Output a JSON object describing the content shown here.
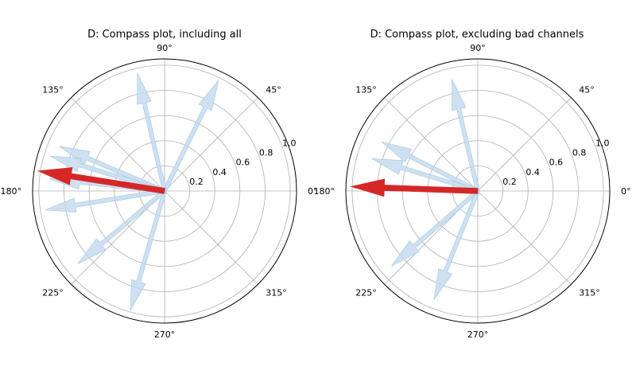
{
  "colors": {
    "channel": "#c6dbef",
    "channel_edge": "#9ecae1",
    "mean": "#d62728",
    "grid": "#b0b0b0"
  },
  "chart_data": [
    {
      "type": "polar-compass",
      "title": "D: Compass plot, including all",
      "theta_tick_labels": [
        "0°",
        "45°",
        "90°",
        "135°",
        "180°",
        "225°",
        "270°",
        "315°"
      ],
      "r_tick_labels": [
        "0.2",
        "0.4",
        "0.6",
        "0.8",
        "1.0"
      ],
      "rlim": [
        0,
        1.05
      ],
      "grid": true,
      "series": [
        {
          "role": "channels",
          "vectors": [
            {
              "angle_deg": 64,
              "length": 0.98
            },
            {
              "angle_deg": 103,
              "length": 0.96
            },
            {
              "angle_deg": 157,
              "length": 0.91
            },
            {
              "angle_deg": 163,
              "length": 0.95
            },
            {
              "angle_deg": 174,
              "length": 0.92
            },
            {
              "angle_deg": 189,
              "length": 0.96
            },
            {
              "angle_deg": 220,
              "length": 0.9
            },
            {
              "angle_deg": 254,
              "length": 0.99
            }
          ]
        },
        {
          "role": "mean",
          "vectors": [
            {
              "angle_deg": 171,
              "length": 1.02
            }
          ]
        }
      ]
    },
    {
      "type": "polar-compass",
      "title": "D: Compass plot, excluding bad channels",
      "theta_tick_labels": [
        "0°",
        "45°",
        "90°",
        "135°",
        "180°",
        "225°",
        "270°",
        "315°"
      ],
      "r_tick_labels": [
        "0.2",
        "0.4",
        "0.6",
        "0.8",
        "1.0"
      ],
      "rlim": [
        0,
        1.05
      ],
      "grid": true,
      "series": [
        {
          "role": "channels",
          "vectors": [
            {
              "angle_deg": 103,
              "length": 0.91
            },
            {
              "angle_deg": 153,
              "length": 0.86
            },
            {
              "angle_deg": 163,
              "length": 0.88
            },
            {
              "angle_deg": 221,
              "length": 0.91
            },
            {
              "angle_deg": 248,
              "length": 0.93
            }
          ]
        },
        {
          "role": "mean",
          "vectors": [
            {
              "angle_deg": 178,
              "length": 1.01
            }
          ]
        }
      ]
    }
  ]
}
